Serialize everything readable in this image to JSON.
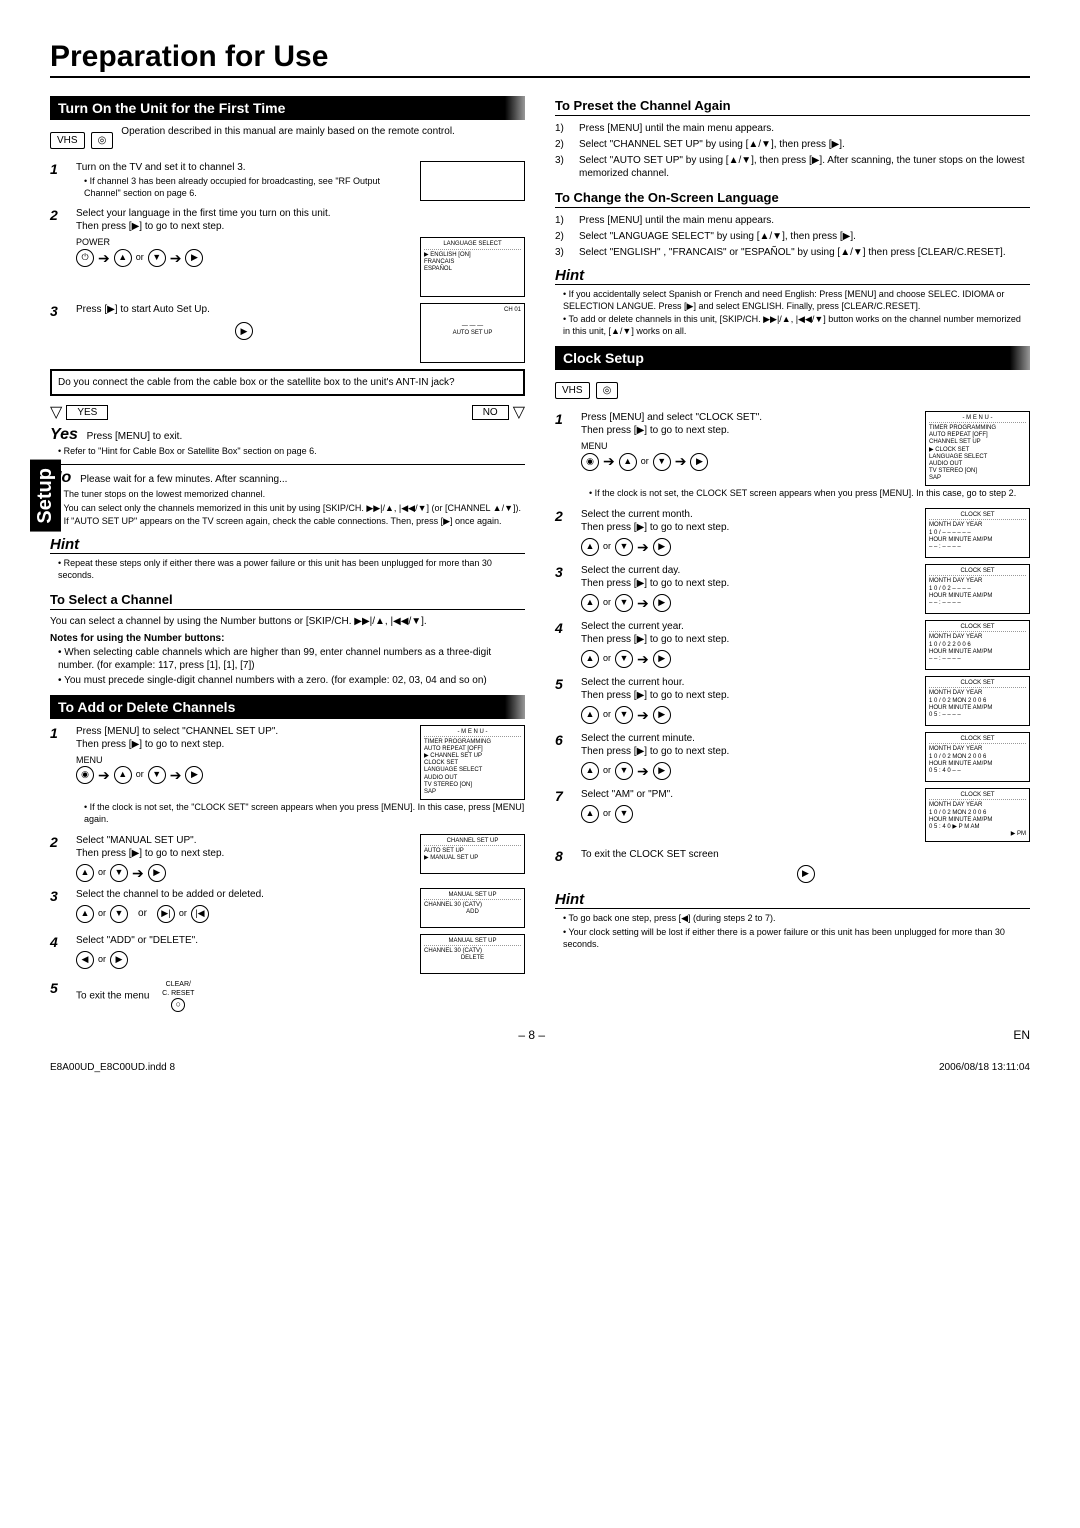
{
  "page_title": "Preparation for Use",
  "setup_tab": "Setup",
  "page_number": "– 8 –",
  "lang_code": "EN",
  "footer_left": "E8A00UD_E8C00UD.indd   8",
  "footer_right": "2006/08/18   13:11:04",
  "left": {
    "sec1_title": "Turn On the Unit for the First Time",
    "vhs_note": "Operation described in this manual are mainly based on the remote control.",
    "step1": "Turn on the TV and set it to channel 3.",
    "step1_bullet": "If channel 3 has been already occupied for broadcasting, see \"RF Output Channel\" section on page 6.",
    "step2": "Select your language in the first time you turn on this unit.",
    "step2b": "Then press [▶] to go to next step.",
    "power_label": "POWER",
    "lang_box_title": "LANGUAGE SELECT",
    "lang_box_lines": [
      "▶ ENGLISH          [ON]",
      "FRANCAIS",
      "ESPAÑOL"
    ],
    "step3": "Press [▶] to start Auto Set Up.",
    "auto_box_label": "AUTO SET UP",
    "auto_box_ch": "CH 01",
    "question_box": "Do you connect the cable from the cable box or the satellite box to the unit's ANT-IN jack?",
    "yes": "YES",
    "no": "NO",
    "yes_line": "Press [MENU] to exit.",
    "yes_bullet": "Refer to \"Hint for Cable Box or Satellite Box\" section on page 6.",
    "no_line": "Please wait for a few minutes. After scanning...",
    "no_bullets": [
      "The tuner stops on the lowest memorized channel.",
      "You can select only the channels memorized in this unit by using [SKIP/CH. ▶▶|/▲, |◀◀/▼] (or [CHANNEL ▲/▼]).",
      "If \"AUTO SET UP\" appears on the TV screen again, check the cable connections. Then, press [▶] once again."
    ],
    "hint1": "Hint",
    "hint1_bullet": "Repeat these steps only if either there was a power failure or this unit has been unplugged for more than 30 seconds.",
    "sub_select": "To Select a Channel",
    "select_text": "You can select a channel by using the Number buttons or [SKIP/CH. ▶▶|/▲, |◀◀/▼].",
    "notes_heading": "Notes for using the Number buttons:",
    "notes_bullets": [
      "When selecting cable channels which are higher than 99, enter channel numbers as a three-digit number. (for example: 117, press [1], [1], [7])",
      "You must precede single-digit channel numbers with a zero. (for example: 02, 03, 04 and so on)"
    ],
    "sec2_title": "To Add or Delete Channels",
    "add_step1": "Press [MENU] to select \"CHANNEL SET UP\".",
    "add_step1b": "Then press [▶] to go to next step.",
    "menu_label": "MENU",
    "menu_box_title": "- M E N U -",
    "menu_box_lines": [
      "TIMER PROGRAMMING",
      "AUTO REPEAT      [OFF]",
      "▶ CHANNEL SET UP",
      "CLOCK SET",
      "LANGUAGE SELECT",
      "AUDIO OUT",
      "TV STEREO        [ON]",
      "SAP"
    ],
    "add_step1_note": "If the clock is not set, the \"CLOCK SET\" screen appears when you press [MENU]. In this case, press [MENU] again.",
    "add_step2": "Select \"MANUAL SET UP\".",
    "add_step2b": "Then press [▶] to go to next step.",
    "chsetup_box_title": "CHANNEL SET UP",
    "chsetup_lines": [
      "AUTO SET UP",
      "▶ MANUAL SET UP"
    ],
    "add_step3": "Select the channel to be added or deleted.",
    "manual_box_title": "MANUAL SET UP",
    "manual_line": "CHANNEL   30   (CATV)",
    "manual_add": "ADD",
    "or_label": "or",
    "add_step4": "Select \"ADD\" or \"DELETE\".",
    "manual_delete": "DELETE",
    "add_step5": "To exit the menu",
    "clear_label": "CLEAR/\nC. RESET"
  },
  "right": {
    "sub_preset": "To Preset the Channel Again",
    "preset_steps": [
      {
        "n": "1)",
        "t": "Press [MENU] until the main menu appears."
      },
      {
        "n": "2)",
        "t": "Select \"CHANNEL SET UP\" by using [▲/▼], then press [▶]."
      },
      {
        "n": "3)",
        "t": "Select \"AUTO SET UP\" by using [▲/▼], then press [▶]. After scanning, the tuner stops on the lowest memorized channel."
      }
    ],
    "sub_lang": "To Change the On-Screen Language",
    "lang_steps": [
      {
        "n": "1)",
        "t": "Press [MENU] until the main menu appears."
      },
      {
        "n": "2)",
        "t": "Select \"LANGUAGE SELECT\" by using [▲/▼], then press [▶]."
      },
      {
        "n": "3)",
        "t": "Select \"ENGLISH\" , \"FRANCAIS\" or \"ESPAÑOL\" by using [▲/▼] then press [CLEAR/C.RESET]."
      }
    ],
    "hint1": "Hint",
    "hint1_bullets": [
      "If you accidentally select Spanish or French and need English: Press [MENU] and choose SELEC. IDIOMA or SELECTION LANGUE. Press [▶] and select ENGLISH. Finally, press [CLEAR/C.RESET].",
      "To add or delete channels in this unit, [SKIP/CH. ▶▶|/▲, |◀◀/▼] button works on the channel number memorized in this unit, [▲/▼] works on all."
    ],
    "sec_clock": "Clock Setup",
    "clock_step1": "Press [MENU] and select \"CLOCK SET\".",
    "clock_step1b": "Then press [▶] to go to next step.",
    "clock_menu_title": "- M E N U -",
    "clock_menu_lines": [
      "TIMER PROGRAMMING",
      "AUTO REPEAT      [OFF]",
      "CHANNEL SET UP",
      "▶ CLOCK SET",
      "LANGUAGE SELECT",
      "AUDIO OUT",
      "TV STEREO        [ON]",
      "SAP"
    ],
    "clock_step1_note": "If the clock is not set, the CLOCK SET screen appears when you press [MENU]. In this case, go to step 2.",
    "clock_steps": [
      {
        "n": "2",
        "t": "Select the current month.",
        "box": {
          "title": "CLOCK SET",
          "l1": "MONTH  DAY        YEAR",
          "l2": "1 0   / – –         – – – –",
          "l3": "HOUR  MINUTE  AM/PM",
          "l4": "– –   :   – –           – –"
        }
      },
      {
        "n": "3",
        "t": "Select the current day.",
        "box": {
          "title": "CLOCK SET",
          "l1": "MONTH  DAY        YEAR",
          "l2": "1 0   /  0 2         – – – –",
          "l3": "HOUR  MINUTE  AM/PM",
          "l4": "– –   :   – –           – –"
        }
      },
      {
        "n": "4",
        "t": "Select the current year.",
        "box": {
          "title": "CLOCK SET",
          "l1": "MONTH  DAY        YEAR",
          "l2": "1 0   /   0 2        2 0 0 6",
          "l3": "HOUR  MINUTE  AM/PM",
          "l4": "– –   :   – –           – –"
        }
      },
      {
        "n": "5",
        "t": "Select the current hour.",
        "box": {
          "title": "CLOCK SET",
          "l1": "MONTH  DAY        YEAR",
          "l2": "1 0   /  0 2  MON  2 0 0 6",
          "l3": "HOUR  MINUTE  AM/PM",
          "l4": "0 5   :   – –           – –"
        }
      },
      {
        "n": "6",
        "t": "Select the current minute.",
        "box": {
          "title": "CLOCK SET",
          "l1": "MONTH  DAY        YEAR",
          "l2": "1 0   /  0 2  MON  2 0 0 6",
          "l3": "HOUR  MINUTE  AM/PM",
          "l4": "0 5   :   4 0           – –"
        }
      },
      {
        "n": "7",
        "t": "Select \"AM\" or \"PM\".",
        "box": {
          "title": "CLOCK SET",
          "l1": "MONTH  DAY        YEAR",
          "l2": "1 0   /  0 2  MON  2 0 0 6",
          "l3": "HOUR  MINUTE  AM/PM",
          "l4": "0 5   :   4 0      ▶ P M  AM",
          "l5": "▶ PM"
        }
      }
    ],
    "clock_step_next": "Then press [▶] to go to next step.",
    "clock_step8": "To exit the CLOCK SET screen",
    "hint2": "Hint",
    "hint2_bullets": [
      "To go back one step, press [◀] (during steps 2 to 7).",
      "Your clock setting will be lost if either there is a power failure or this unit has been unplugged for more than 30 seconds."
    ]
  }
}
